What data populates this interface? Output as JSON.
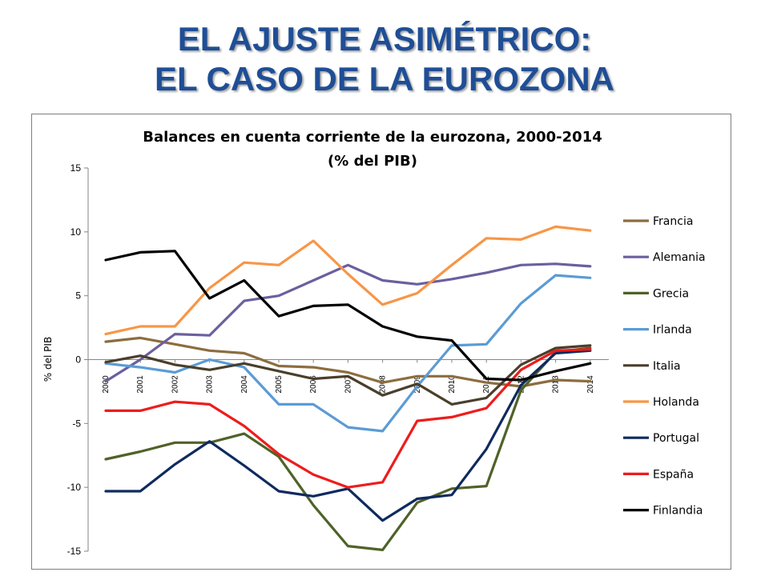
{
  "slide": {
    "title_line1": "EL AJUSTE ASIMÉTRICO:",
    "title_line2": "EL CASO DE LA EUROZONA"
  },
  "chart_data": {
    "type": "line",
    "title_line1": "Balances en cuenta corriente de la eurozona,  2000-2014",
    "title_line2": "(% del PIB)",
    "ylabel": "% del PIB",
    "xlabel": "",
    "ylim": [
      -15,
      15
    ],
    "yticks": [
      15,
      10,
      5,
      0,
      -5,
      -10,
      -15
    ],
    "x": [
      "2000",
      "2001",
      "2002",
      "2003",
      "2004",
      "2005",
      "2006",
      "2007",
      "2008",
      "2009",
      "2010",
      "2011",
      "2012",
      "2013",
      "2014"
    ],
    "legend_position": "right",
    "grid": false,
    "series": [
      {
        "name": "Francia",
        "color": "#8c6d3f",
        "values": [
          1.4,
          1.7,
          1.2,
          0.7,
          0.5,
          -0.5,
          -0.6,
          -1.0,
          -1.8,
          -1.3,
          -1.3,
          -1.8,
          -2.1,
          -1.6,
          -1.7
        ]
      },
      {
        "name": "Alemania",
        "color": "#6b5f9e",
        "values": [
          -1.7,
          0.0,
          2.0,
          1.9,
          4.6,
          5.0,
          6.2,
          7.4,
          6.2,
          5.9,
          6.3,
          6.8,
          7.4,
          7.5,
          7.3
        ]
      },
      {
        "name": "Grecia",
        "color": "#4f6228",
        "values": [
          -7.8,
          -7.2,
          -6.5,
          -6.5,
          -5.8,
          -7.6,
          -11.4,
          -14.6,
          -14.9,
          -11.2,
          -10.1,
          -9.9,
          -2.4,
          0.6,
          0.9
        ]
      },
      {
        "name": "Irlanda",
        "color": "#5b9bd5",
        "values": [
          -0.3,
          -0.6,
          -1.0,
          0.0,
          -0.6,
          -3.5,
          -3.5,
          -5.3,
          -5.6,
          -2.1,
          1.1,
          1.2,
          4.4,
          6.6,
          6.4
        ]
      },
      {
        "name": "Italia",
        "color": "#4a3f2b",
        "values": [
          -0.2,
          0.3,
          -0.4,
          -0.8,
          -0.3,
          -0.9,
          -1.5,
          -1.3,
          -2.8,
          -1.9,
          -3.5,
          -3.0,
          -0.4,
          0.9,
          1.1
        ]
      },
      {
        "name": "Holanda",
        "color": "#f79646",
        "values": [
          2.0,
          2.6,
          2.6,
          5.6,
          7.6,
          7.4,
          9.3,
          6.7,
          4.3,
          5.2,
          7.4,
          9.5,
          9.4,
          10.4,
          10.1
        ]
      },
      {
        "name": "Portugal",
        "color": "#0f2a5e",
        "values": [
          -10.3,
          -10.3,
          -8.2,
          -6.4,
          -8.3,
          -10.3,
          -10.7,
          -10.1,
          -12.6,
          -10.9,
          -10.6,
          -7.0,
          -2.0,
          0.5,
          0.7
        ]
      },
      {
        "name": "España",
        "color": "#ee1c1c",
        "values": [
          -4.0,
          -4.0,
          -3.3,
          -3.5,
          -5.2,
          -7.4,
          -9.0,
          -10.0,
          -9.6,
          -4.8,
          -4.5,
          -3.8,
          -0.8,
          0.7,
          0.8
        ]
      },
      {
        "name": "Finlandia",
        "color": "#000000",
        "values": [
          7.8,
          8.4,
          8.5,
          4.8,
          6.2,
          3.4,
          4.2,
          4.3,
          2.6,
          1.8,
          1.5,
          -1.5,
          -1.6,
          -0.9,
          -0.3
        ]
      }
    ]
  }
}
